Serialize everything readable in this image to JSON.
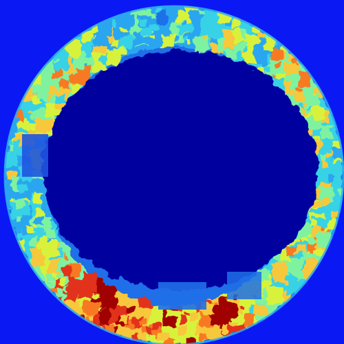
{
  "image": {
    "kind": "false-color circular field map (jet colormap)",
    "colors": {
      "background": "#0a18f4",
      "interior": "#00009f",
      "ring_base": "#1f6fe8",
      "colormap": [
        "#00009f",
        "#0a18f4",
        "#1f6fe8",
        "#2aa6f0",
        "#39d2e6",
        "#7ff2a0",
        "#d8f23a",
        "#f7c83a",
        "#f77a24",
        "#e2301a",
        "#a00000"
      ]
    },
    "edge_band_level": [
      0.42,
      0.55,
      0.5,
      0.46,
      0.6,
      0.72,
      0.55,
      0.5,
      0.48,
      0.52,
      0.58,
      0.68,
      0.6,
      0.55,
      0.62,
      0.85,
      0.9,
      0.82,
      0.76,
      0.88,
      0.95,
      0.8,
      0.7,
      0.62,
      0.5,
      0.44,
      0.4,
      0.46,
      0.52,
      0.58,
      0.64,
      0.6,
      0.5,
      0.44,
      0.38,
      0.42
    ]
  }
}
